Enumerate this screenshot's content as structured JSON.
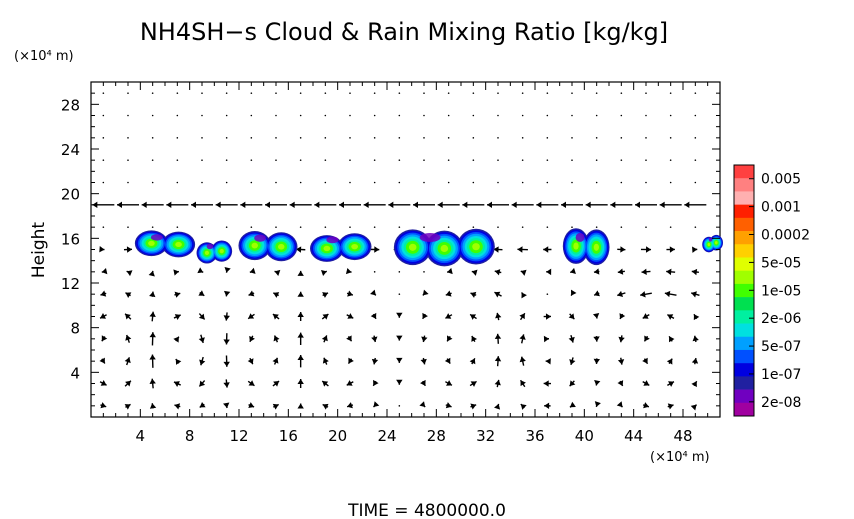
{
  "chart_data": {
    "type": "heatmap",
    "title": "NH4SH−s Cloud & Rain Mixing Ratio [kg/kg]",
    "ylabel": "Height",
    "y_unit": "(×10⁴ m)",
    "x_unit": "(×10⁴ m)",
    "xlim": [
      0,
      51
    ],
    "ylim": [
      0,
      30
    ],
    "x_ticks": [
      4,
      8,
      12,
      16,
      20,
      24,
      28,
      32,
      36,
      40,
      44,
      48
    ],
    "y_ticks": [
      4,
      8,
      12,
      16,
      20,
      24,
      28
    ],
    "colorbar": {
      "labels": [
        "0.005",
        "0.001",
        "0.0002",
        "5e-05",
        "1e-05",
        "2e-06",
        "5e-07",
        "1e-07",
        "2e-08"
      ],
      "colors": [
        "#ff4040",
        "#ff8080",
        "#ffb0b0",
        "#ff2000",
        "#ff6000",
        "#ffa000",
        "#ffd000",
        "#e0ff00",
        "#a0ff00",
        "#40ff00",
        "#00e050",
        "#00f0a0",
        "#00e0e0",
        "#00a0ff",
        "#0050ff",
        "#0000e0",
        "#2020a0",
        "#7000c0",
        "#a000a0"
      ]
    },
    "cloud_regions": [
      {
        "x": [
          3.8,
          8.2
        ],
        "y": [
          14.3,
          16.6
        ],
        "peak": "1e-05"
      },
      {
        "x": [
          8.8,
          11.2
        ],
        "y": [
          13.8,
          15.7
        ],
        "peak": "1e-05"
      },
      {
        "x": [
          12.2,
          16.5
        ],
        "y": [
          14.0,
          16.6
        ],
        "peak": "1e-05"
      },
      {
        "x": [
          18.0,
          22.5
        ],
        "y": [
          14.0,
          16.4
        ],
        "peak": "1e-05"
      },
      {
        "x": [
          24.8,
          32.5
        ],
        "y": [
          13.6,
          16.8
        ],
        "peak": "1e-05"
      },
      {
        "x": [
          38.5,
          41.8
        ],
        "y": [
          13.6,
          16.8
        ],
        "peak": "1e-05"
      },
      {
        "x": [
          49.8,
          51.0
        ],
        "y": [
          14.8,
          16.2
        ],
        "peak": "5e-07"
      }
    ],
    "time_label": "TIME  =  4800000.0"
  }
}
